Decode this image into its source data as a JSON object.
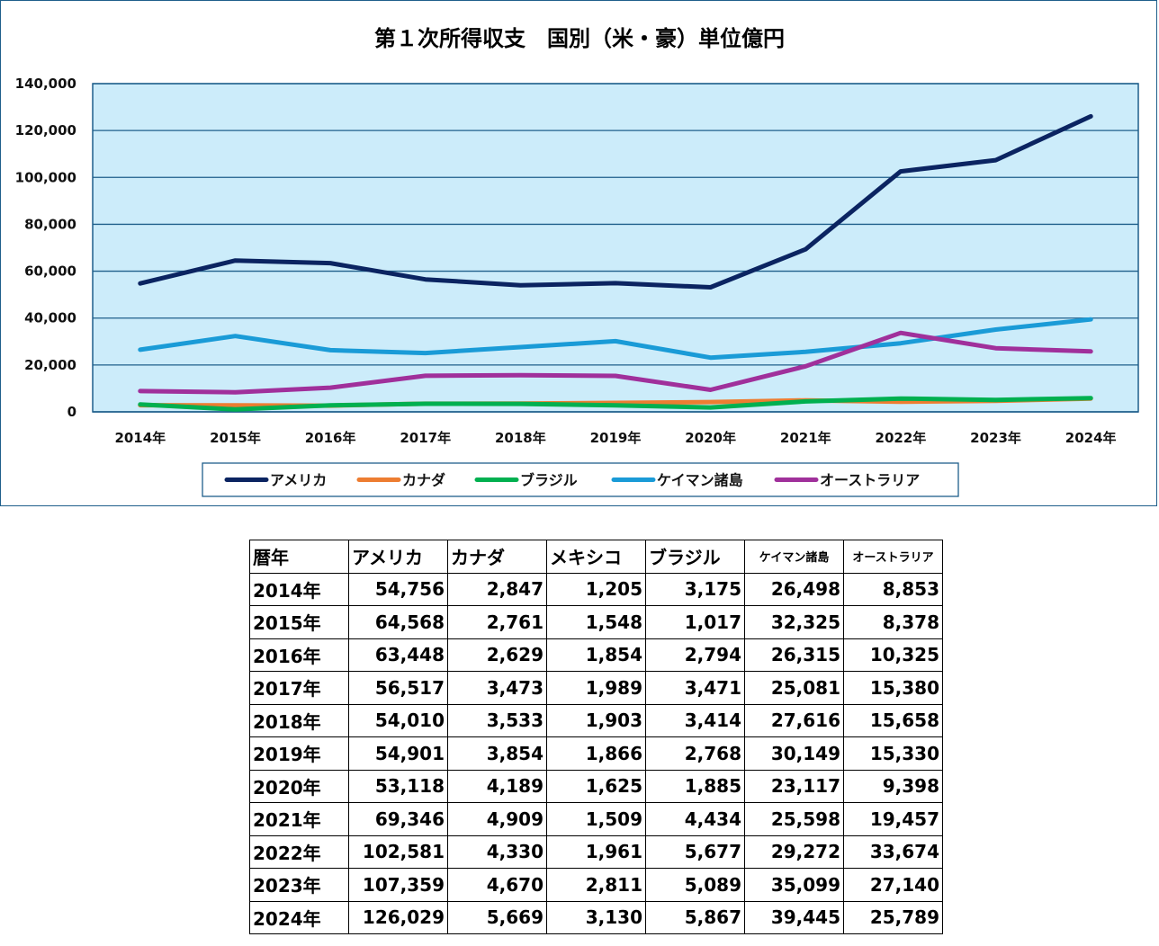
{
  "chart_data": {
    "type": "line",
    "title": "第１次所得収支　国別（米・豪）単位億円",
    "categories": [
      "2014年",
      "2015年",
      "2016年",
      "2017年",
      "2018年",
      "2019年",
      "2020年",
      "2021年",
      "2022年",
      "2023年",
      "2024年"
    ],
    "ylim": [
      0,
      140000
    ],
    "yticks": [
      "0",
      "20,000",
      "40,000",
      "60,000",
      "80,000",
      "100,000",
      "120,000",
      "140,000"
    ],
    "grid": true,
    "legend_position": "bottom",
    "plot_background": "#CCECFA",
    "series": [
      {
        "name": "アメリカ",
        "color": "#0B2461",
        "values": [
          54756,
          64568,
          63448,
          56517,
          54010,
          54901,
          53118,
          69346,
          102581,
          107359,
          126029
        ]
      },
      {
        "name": "カナダ",
        "color": "#ED7D31",
        "values": [
          2847,
          2761,
          2629,
          3473,
          3533,
          3854,
          4189,
          4909,
          4330,
          4670,
          5669
        ]
      },
      {
        "name": "ブラジル",
        "color": "#00B050",
        "values": [
          3175,
          1017,
          2794,
          3471,
          3414,
          2768,
          1885,
          4434,
          5677,
          5089,
          5867
        ]
      },
      {
        "name": "ケイマン諸島",
        "color": "#1A9BD7",
        "values": [
          26498,
          32325,
          26315,
          25081,
          27616,
          30149,
          23117,
          25598,
          29272,
          35099,
          39445
        ]
      },
      {
        "name": "オーストラリア",
        "color": "#A0309B",
        "values": [
          8853,
          8378,
          10325,
          15380,
          15658,
          15330,
          9398,
          19457,
          33674,
          27140,
          25789
        ]
      }
    ]
  },
  "table": {
    "headers": [
      "暦年",
      "アメリカ",
      "カナダ",
      "メキシコ",
      "ブラジル",
      "ケイマン諸島",
      "オーストラリア"
    ],
    "rows": [
      [
        "2014年",
        "54,756",
        "2,847",
        "1,205",
        "3,175",
        "26,498",
        "8,853"
      ],
      [
        "2015年",
        "64,568",
        "2,761",
        "1,548",
        "1,017",
        "32,325",
        "8,378"
      ],
      [
        "2016年",
        "63,448",
        "2,629",
        "1,854",
        "2,794",
        "26,315",
        "10,325"
      ],
      [
        "2017年",
        "56,517",
        "3,473",
        "1,989",
        "3,471",
        "25,081",
        "15,380"
      ],
      [
        "2018年",
        "54,010",
        "3,533",
        "1,903",
        "3,414",
        "27,616",
        "15,658"
      ],
      [
        "2019年",
        "54,901",
        "3,854",
        "1,866",
        "2,768",
        "30,149",
        "15,330"
      ],
      [
        "2020年",
        "53,118",
        "4,189",
        "1,625",
        "1,885",
        "23,117",
        "9,398"
      ],
      [
        "2021年",
        "69,346",
        "4,909",
        "1,509",
        "4,434",
        "25,598",
        "19,457"
      ],
      [
        "2022年",
        "102,581",
        "4,330",
        "1,961",
        "5,677",
        "29,272",
        "33,674"
      ],
      [
        "2023年",
        "107,359",
        "4,670",
        "2,811",
        "5,089",
        "35,099",
        "27,140"
      ],
      [
        "2024年",
        "126,029",
        "5,669",
        "3,130",
        "5,867",
        "39,445",
        "25,789"
      ]
    ]
  }
}
